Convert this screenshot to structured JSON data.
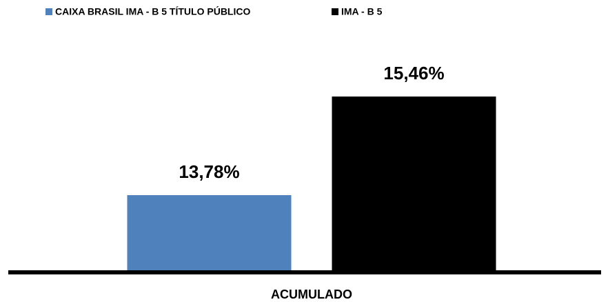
{
  "chart_data": {
    "type": "bar",
    "categories": [
      "ACUMULADO"
    ],
    "series": [
      {
        "name": "CAIXA BRASIL IMA - B 5 TÍTULO PÚBLICO",
        "color": "#4f81bd",
        "values": [
          13.78
        ],
        "value_labels": [
          "13,78%"
        ]
      },
      {
        "name": "IMA - B 5",
        "color": "#000000",
        "values": [
          15.46
        ],
        "value_labels": [
          "15,46%"
        ]
      }
    ],
    "ylim": [
      12.5,
      16
    ],
    "legend": "top"
  }
}
